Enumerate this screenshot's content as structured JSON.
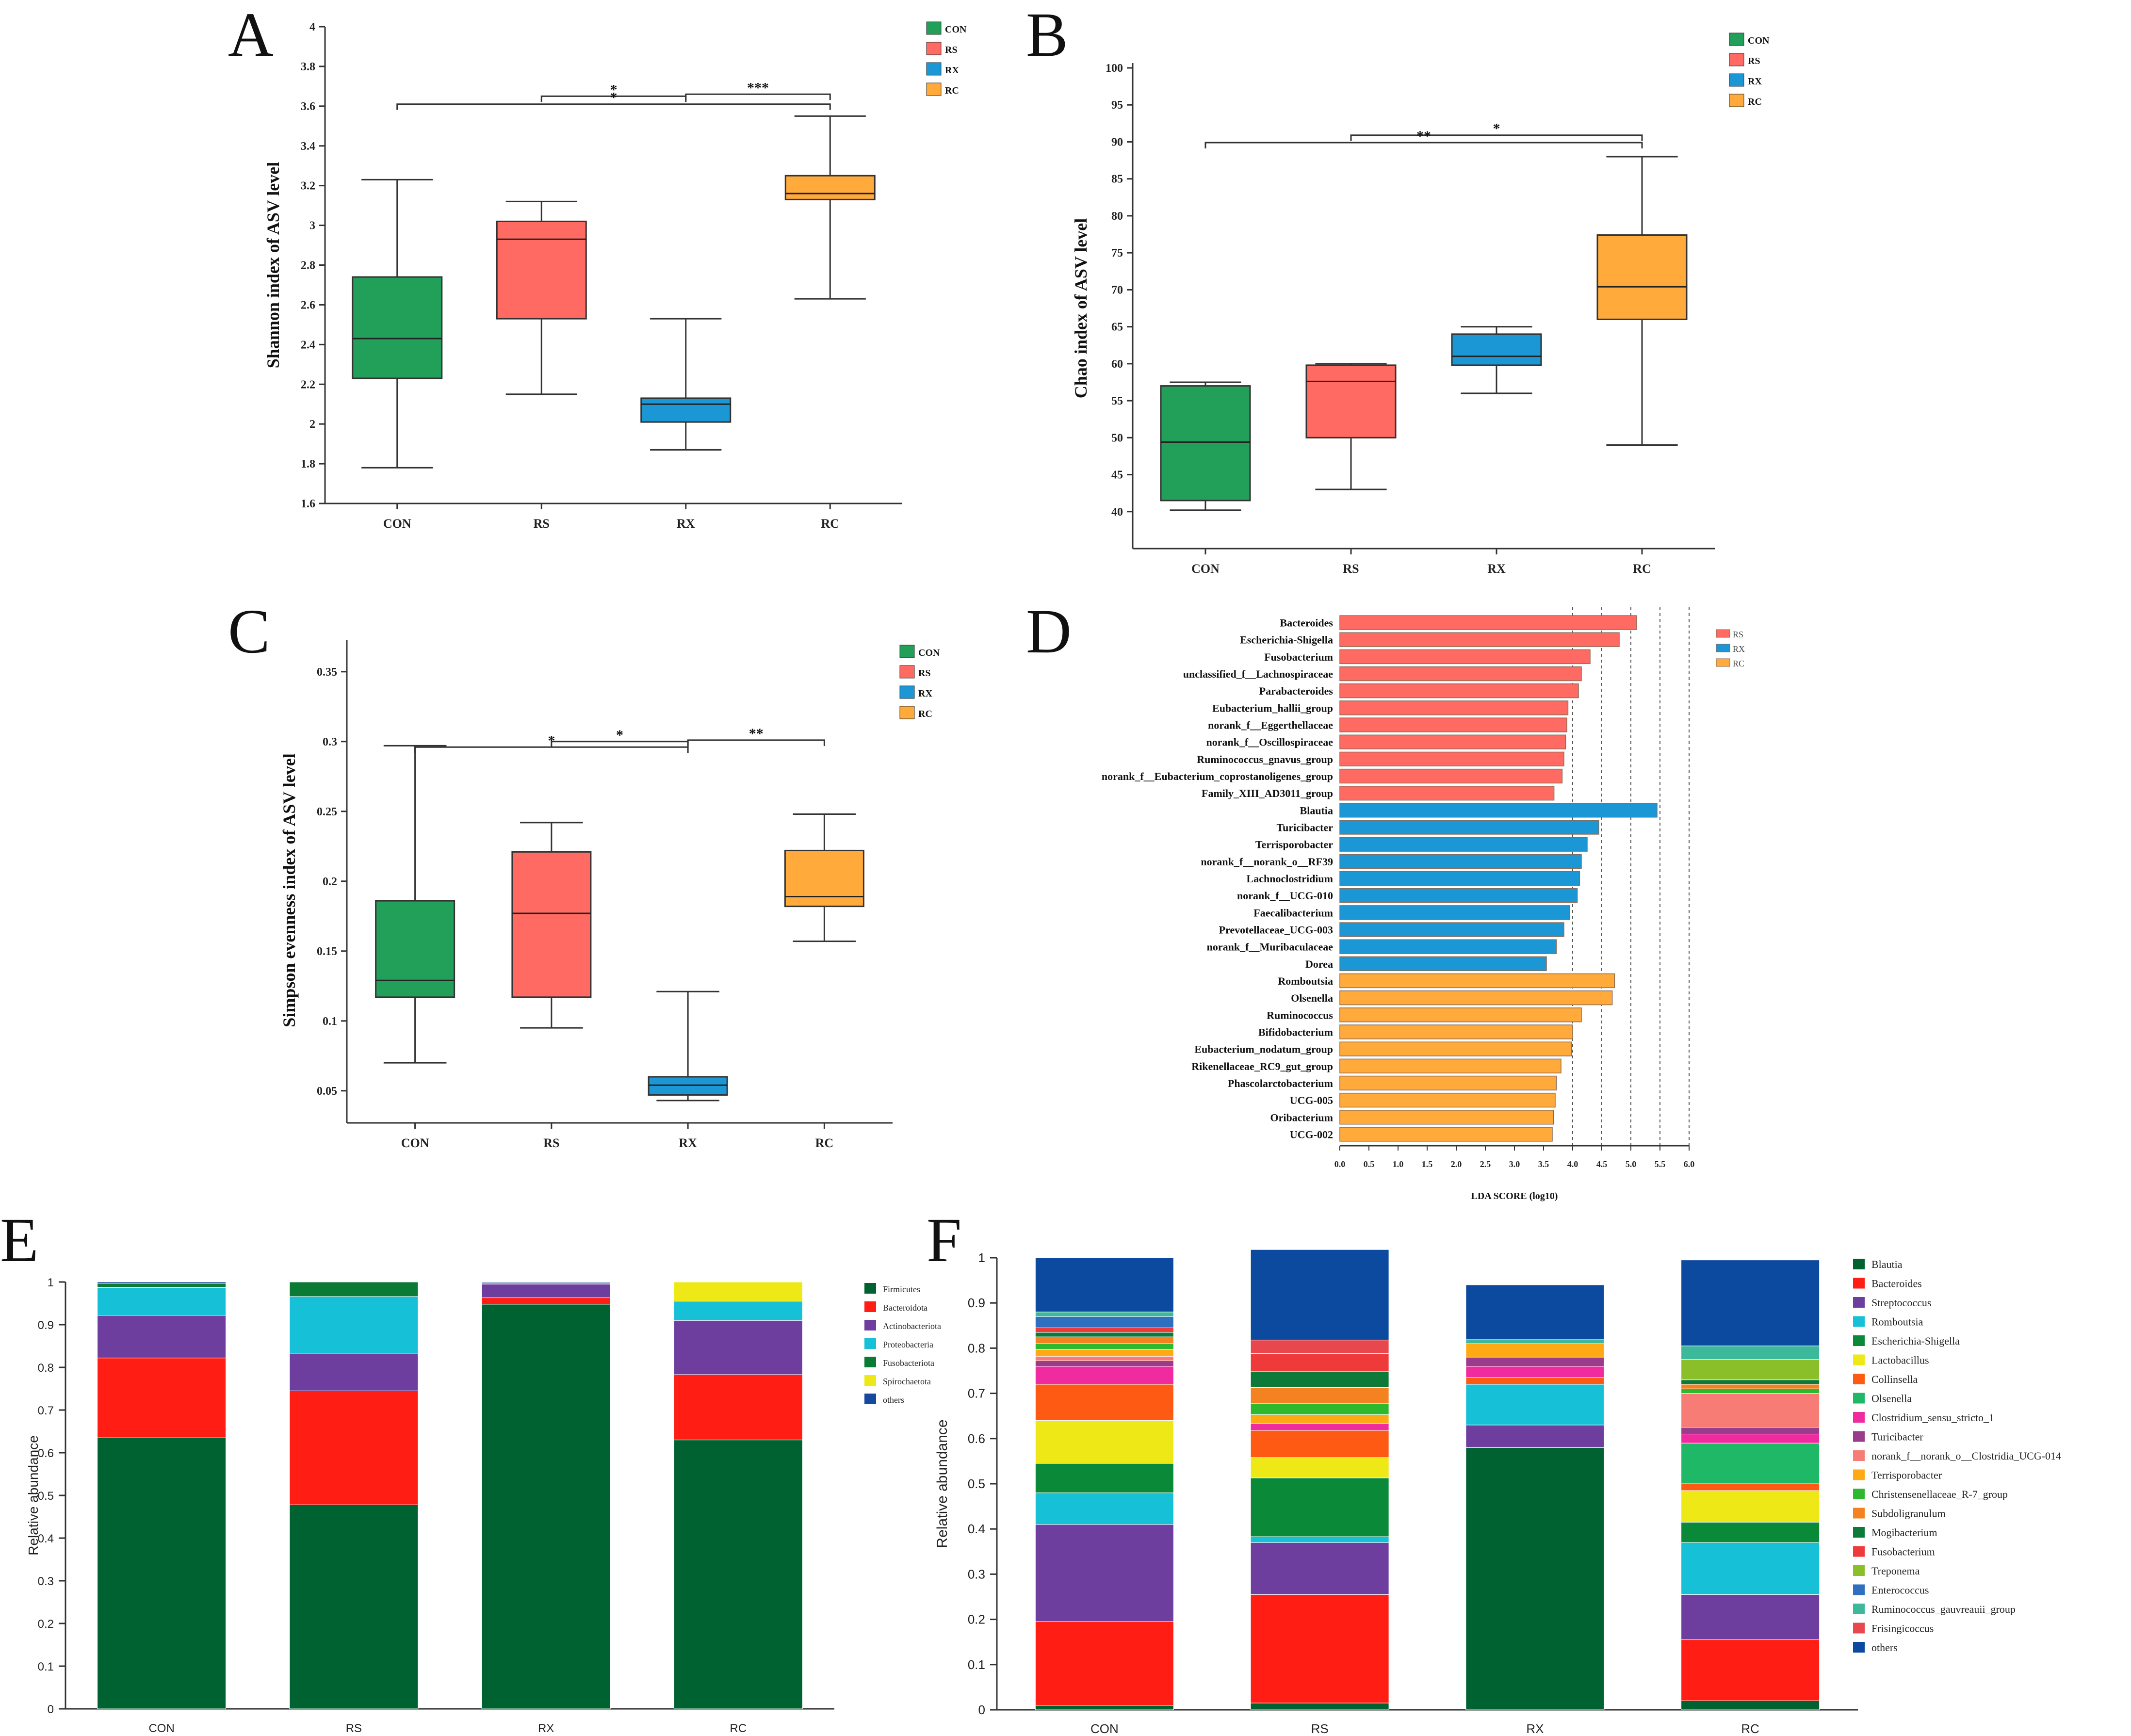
{
  "colors": {
    "CON": "#22A05A",
    "RS": "#FF6B62",
    "RX": "#1B97D6",
    "RC": "#FFAA3B",
    "axis": "#333333"
  },
  "chart_data": [
    {
      "panel": "A",
      "type": "box",
      "ylabel": "Shannon index of ASV level",
      "ylim": [
        1.6,
        4
      ],
      "yticks": [
        "1.6",
        "1.8",
        "2",
        "2.2",
        "2.4",
        "2.6",
        "2.8",
        "3",
        "3.2",
        "3.4",
        "3.6",
        "3.8",
        "4"
      ],
      "categories": [
        "CON",
        "RS",
        "RX",
        "RC"
      ],
      "boxes": [
        {
          "name": "CON",
          "min": 1.78,
          "q1": 2.23,
          "median": 2.43,
          "q3": 2.74,
          "max": 3.23
        },
        {
          "name": "RS",
          "min": 2.15,
          "q1": 2.53,
          "median": 2.93,
          "q3": 3.02,
          "max": 3.12
        },
        {
          "name": "RX",
          "min": 1.87,
          "q1": 2.01,
          "median": 2.1,
          "q3": 2.13,
          "max": 2.53
        },
        {
          "name": "RC",
          "min": 2.63,
          "q1": 3.13,
          "median": 3.16,
          "q3": 3.25,
          "max": 3.55
        }
      ],
      "legend": [
        "CON",
        "RS",
        "RX",
        "RC"
      ],
      "significance": [
        {
          "from": "RS",
          "to": "RX",
          "y": 3.65,
          "label": "*"
        },
        {
          "from": "RX",
          "to": "RC",
          "y": 3.66,
          "label": "***"
        },
        {
          "from": "CON",
          "to": "RC",
          "y": 3.61,
          "label": "*"
        }
      ]
    },
    {
      "panel": "B",
      "type": "box",
      "ylabel": "Chao index of ASV level",
      "ylim": [
        35,
        100
      ],
      "yticks": [
        "40",
        "45",
        "50",
        "55",
        "60",
        "65",
        "70",
        "75",
        "80",
        "85",
        "90",
        "95",
        "100"
      ],
      "categories": [
        "CON",
        "RS",
        "RX",
        "RC"
      ],
      "boxes": [
        {
          "name": "CON",
          "min": 40.2,
          "q1": 41.5,
          "median": 49.4,
          "q3": 57.0,
          "max": 57.5
        },
        {
          "name": "RS",
          "min": 43.0,
          "q1": 50.0,
          "median": 57.6,
          "q3": 59.8,
          "max": 60.0
        },
        {
          "name": "RX",
          "min": 56.0,
          "q1": 59.8,
          "median": 61.0,
          "q3": 64.0,
          "max": 65.0
        },
        {
          "name": "RC",
          "min": 49.0,
          "q1": 66.0,
          "median": 70.4,
          "q3": 77.4,
          "max": 88.0
        }
      ],
      "legend": [
        "CON",
        "RS",
        "RX",
        "RC"
      ],
      "significance": [
        {
          "from": "RS",
          "to": "RC",
          "y": 90.9,
          "label": "*"
        },
        {
          "from": "CON",
          "to": "RC",
          "y": 89.9,
          "label": "**"
        }
      ]
    },
    {
      "panel": "C",
      "type": "box",
      "ylabel": "Simpson evenness index of ASV level",
      "ylim": [
        0.027,
        0.36
      ],
      "yticks": [
        "0.05",
        "0.1",
        "0.15",
        "0.2",
        "0.25",
        "0.3",
        "0.35"
      ],
      "categories": [
        "CON",
        "RS",
        "RX",
        "RC"
      ],
      "boxes": [
        {
          "name": "CON",
          "min": 0.07,
          "q1": 0.117,
          "median": 0.129,
          "q3": 0.186,
          "max": 0.297
        },
        {
          "name": "RS",
          "min": 0.095,
          "q1": 0.117,
          "median": 0.177,
          "q3": 0.221,
          "max": 0.242
        },
        {
          "name": "RX",
          "min": 0.043,
          "q1": 0.047,
          "median": 0.054,
          "q3": 0.06,
          "max": 0.121
        },
        {
          "name": "RC",
          "min": 0.157,
          "q1": 0.182,
          "median": 0.189,
          "q3": 0.222,
          "max": 0.248
        }
      ],
      "legend": [
        "CON",
        "RS",
        "RX",
        "RC"
      ],
      "significance": [
        {
          "from": "RS",
          "to": "RX",
          "y": 0.3,
          "label": "*"
        },
        {
          "from": "RX",
          "to": "RC",
          "y": 0.301,
          "label": "**"
        },
        {
          "from": "CON",
          "to": "RX",
          "y": 0.296,
          "label": "*"
        }
      ]
    },
    {
      "panel": "D",
      "type": "bar-horizontal",
      "xlabel": "LDA SCORE (log10)",
      "xlim": [
        0,
        6
      ],
      "xticks": [
        "0.0",
        "0.5",
        "1.0",
        "1.5",
        "2.0",
        "2.5",
        "3.0",
        "3.5",
        "4.0",
        "4.5",
        "5.0",
        "5.5",
        "6.0"
      ],
      "legend": [
        "RS",
        "RX",
        "RC"
      ],
      "bars": [
        {
          "name": "Bacteroides",
          "group": "RS",
          "value": 5.1
        },
        {
          "name": "Escherichia-Shigella",
          "group": "RS",
          "value": 4.8
        },
        {
          "name": "Fusobacterium",
          "group": "RS",
          "value": 4.3
        },
        {
          "name": "unclassified_f__Lachnospiraceae",
          "group": "RS",
          "value": 4.15
        },
        {
          "name": "Parabacteroides",
          "group": "RS",
          "value": 4.1
        },
        {
          "name": "Eubacterium_hallii_group",
          "group": "RS",
          "value": 3.92
        },
        {
          "name": "norank_f__Eggerthellaceae",
          "group": "RS",
          "value": 3.9
        },
        {
          "name": "norank_f__Oscillospiraceae",
          "group": "RS",
          "value": 3.88
        },
        {
          "name": "Ruminococcus_gnavus_group",
          "group": "RS",
          "value": 3.85
        },
        {
          "name": "norank_f__Eubacterium_coprostanoligenes_group",
          "group": "RS",
          "value": 3.82
        },
        {
          "name": "Family_XIII_AD3011_group",
          "group": "RS",
          "value": 3.68
        },
        {
          "name": "Blautia",
          "group": "RX",
          "value": 5.45
        },
        {
          "name": "Turicibacter",
          "group": "RX",
          "value": 4.45
        },
        {
          "name": "Terrisporobacter",
          "group": "RX",
          "value": 4.25
        },
        {
          "name": "norank_f__norank_o__RF39",
          "group": "RX",
          "value": 4.15
        },
        {
          "name": "Lachnoclostridium",
          "group": "RX",
          "value": 4.12
        },
        {
          "name": "norank_f__UCG-010",
          "group": "RX",
          "value": 4.08
        },
        {
          "name": "Faecalibacterium",
          "group": "RX",
          "value": 3.95
        },
        {
          "name": "Prevotellaceae_UCG-003",
          "group": "RX",
          "value": 3.85
        },
        {
          "name": "norank_f__Muribaculaceae",
          "group": "RX",
          "value": 3.72
        },
        {
          "name": "Dorea",
          "group": "RX",
          "value": 3.55
        },
        {
          "name": "Romboutsia",
          "group": "RC",
          "value": 4.72
        },
        {
          "name": "Olsenella",
          "group": "RC",
          "value": 4.68
        },
        {
          "name": "Ruminococcus",
          "group": "RC",
          "value": 4.15
        },
        {
          "name": "Bifidobacterium",
          "group": "RC",
          "value": 4.0
        },
        {
          "name": "Eubacterium_nodatum_group",
          "group": "RC",
          "value": 3.98
        },
        {
          "name": "Rikenellaceae_RC9_gut_group",
          "group": "RC",
          "value": 3.8
        },
        {
          "name": "Phascolarctobacterium",
          "group": "RC",
          "value": 3.72
        },
        {
          "name": "UCG-005",
          "group": "RC",
          "value": 3.7
        },
        {
          "name": "Oribacterium",
          "group": "RC",
          "value": 3.67
        },
        {
          "name": "UCG-002",
          "group": "RC",
          "value": 3.65
        }
      ]
    },
    {
      "panel": "E",
      "type": "stacked-bar",
      "ylabel": "Relative abundance",
      "ylim": [
        0,
        1
      ],
      "yticks": [
        "0",
        "0.1",
        "0.2",
        "0.3",
        "0.4",
        "0.5",
        "0.6",
        "0.7",
        "0.8",
        "0.9",
        "1"
      ],
      "categories": [
        "CON",
        "RS",
        "RX",
        "RC"
      ],
      "series": [
        {
          "name": "Firmicutes",
          "color": "#006231",
          "values": [
            0.635,
            0.478,
            0.948,
            0.63
          ]
        },
        {
          "name": "Bacteroidota",
          "color": "#FF1D14",
          "values": [
            0.187,
            0.267,
            0.015,
            0.153
          ]
        },
        {
          "name": "Actinobacteriota",
          "color": "#6D3E9E",
          "values": [
            0.1,
            0.088,
            0.032,
            0.127
          ]
        },
        {
          "name": "Proteobacteria",
          "color": "#16C1D8",
          "values": [
            0.065,
            0.133,
            0.003,
            0.045
          ]
        },
        {
          "name": "Fusobacteriota",
          "color": "#0A7A35",
          "values": [
            0.01,
            0.034,
            0.0,
            0.0
          ]
        },
        {
          "name": "Spirochaetota",
          "color": "#EEE816",
          "values": [
            0.0,
            0.0,
            0.0,
            0.045
          ]
        },
        {
          "name": "others",
          "color": "#1648A0",
          "values": [
            0.003,
            0.0,
            0.002,
            0.0
          ]
        }
      ]
    },
    {
      "panel": "F",
      "type": "stacked-bar",
      "ylabel": "Relative abundance",
      "ylim": [
        0,
        1
      ],
      "yticks": [
        "0",
        "0.1",
        "0.2",
        "0.3",
        "0.4",
        "0.5",
        "0.6",
        "0.7",
        "0.8",
        "0.9",
        "1"
      ],
      "categories": [
        "CON",
        "RS",
        "RX",
        "RC"
      ],
      "series": [
        {
          "name": "Blautia",
          "color": "#006231",
          "values": [
            0.01,
            0.015,
            0.58,
            0.02
          ]
        },
        {
          "name": "Bacteroides",
          "color": "#FF1D14",
          "values": [
            0.185,
            0.24,
            0.0,
            0.135
          ]
        },
        {
          "name": "Streptococcus",
          "color": "#6D3E9E",
          "values": [
            0.215,
            0.115,
            0.05,
            0.1
          ]
        },
        {
          "name": "Romboutsia",
          "color": "#16C1D8",
          "values": [
            0.07,
            0.013,
            0.09,
            0.115
          ]
        },
        {
          "name": "Escherichia-Shigella",
          "color": "#0A8A38",
          "values": [
            0.065,
            0.13,
            0.0,
            0.045
          ]
        },
        {
          "name": "Lactobacillus",
          "color": "#EEE816",
          "values": [
            0.095,
            0.045,
            0.0,
            0.07
          ]
        },
        {
          "name": "Collinsella",
          "color": "#FF5A14",
          "values": [
            0.08,
            0.06,
            0.015,
            0.015
          ]
        },
        {
          "name": "Olsenella",
          "color": "#1FB866",
          "values": [
            0.0,
            0.0,
            0.0,
            0.09
          ]
        },
        {
          "name": "Clostridium_sensu_stricto_1",
          "color": "#F02BA0",
          "values": [
            0.04,
            0.015,
            0.025,
            0.02
          ]
        },
        {
          "name": "Turicibacter",
          "color": "#9A3C8C",
          "values": [
            0.012,
            0.0,
            0.02,
            0.015
          ]
        },
        {
          "name": "norank_f__norank_o__Clostridia_UCG-014",
          "color": "#F87C76",
          "values": [
            0.01,
            0.0,
            0.0,
            0.075
          ]
        },
        {
          "name": "Terrisporobacter",
          "color": "#FFAA14",
          "values": [
            0.015,
            0.02,
            0.03,
            0.0
          ]
        },
        {
          "name": "Christensenellaceae_R-7_group",
          "color": "#2EB82E",
          "values": [
            0.013,
            0.025,
            0.0,
            0.01
          ]
        },
        {
          "name": "Subdoligranulum",
          "color": "#F58220",
          "values": [
            0.015,
            0.035,
            0.0,
            0.01
          ]
        },
        {
          "name": "Mogibacterium",
          "color": "#0E7A3A",
          "values": [
            0.01,
            0.035,
            0.0,
            0.01
          ]
        },
        {
          "name": "Fusobacterium",
          "color": "#EE3A3A",
          "values": [
            0.01,
            0.04,
            0.0,
            0.0
          ]
        },
        {
          "name": "Treponema",
          "color": "#8ABF2A",
          "values": [
            0.0,
            0.0,
            0.0,
            0.045
          ]
        },
        {
          "name": "Enterococcus",
          "color": "#2E6FC0",
          "values": [
            0.025,
            0.0,
            0.0,
            0.0
          ]
        },
        {
          "name": "Ruminococcus_gauvreauii_group",
          "color": "#3CB89A",
          "values": [
            0.01,
            0.0,
            0.01,
            0.03
          ]
        },
        {
          "name": "Frisingicoccus",
          "color": "#E8474E",
          "values": [
            0.0,
            0.03,
            0.0,
            0.0
          ]
        },
        {
          "name": "others",
          "color": "#0B4A9E",
          "values": [
            0.12,
            0.2,
            0.12,
            0.19
          ]
        }
      ]
    }
  ],
  "panel_labels": [
    "A",
    "B",
    "C",
    "D",
    "E",
    "F"
  ]
}
